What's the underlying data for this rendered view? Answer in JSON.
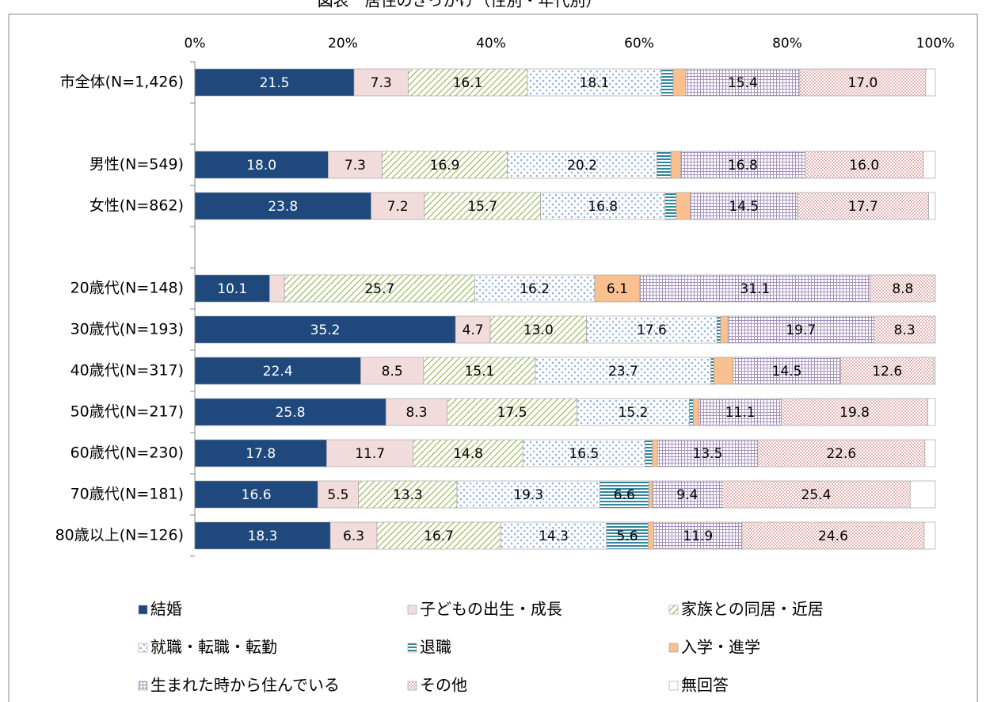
{
  "chart_data": {
    "type": "stacked-bar-horizontal",
    "title": "図表　居住のきっかけ（性別・年代別）",
    "categories": [
      "市全体(N=1,426)",
      null,
      "男性(N=549)",
      "女性(N=862)",
      null,
      "20歳代(N=148)",
      "30歳代(N=193)",
      "40歳代(N=317)",
      "50歳代(N=217)",
      "60歳代(N=230)",
      "70歳代(N=181)",
      "80歳以上(N=126)"
    ],
    "xlim": [
      0,
      100
    ],
    "xticks": [
      {
        "value": 0,
        "label": "0%"
      },
      {
        "value": 20,
        "label": "20%"
      },
      {
        "value": 40,
        "label": "40%"
      },
      {
        "value": 60,
        "label": "60%"
      },
      {
        "value": 80,
        "label": "80%"
      },
      {
        "value": 100,
        "label": "100%"
      }
    ],
    "series": [
      {
        "name": "結婚",
        "color": "#1f497d",
        "pattern": "solid",
        "values": [
          21.5,
          null,
          18,
          23.8,
          null,
          10.1,
          35.2,
          22.4,
          25.8,
          17.8,
          16.6,
          18.3
        ],
        "value_labels": [
          "21.5",
          null,
          "18.0",
          "23.8",
          null,
          "10.1",
          "35.2",
          "22.4",
          "25.8",
          "17.8",
          "16.6",
          "18.3"
        ]
      },
      {
        "name": "子どもの出生・成長",
        "color": "#f2dcdb",
        "pattern": "solid",
        "values": [
          7.3,
          null,
          7.3,
          7.2,
          null,
          2.0,
          4.7,
          8.5,
          8.3,
          11.7,
          5.5,
          6.3
        ]
      },
      {
        "name": "家族との同居・近居",
        "color": "#9bbb59",
        "pattern": "diagonal",
        "values": [
          16.1,
          null,
          16.9,
          15.7,
          null,
          25.7,
          13,
          15.1,
          17.5,
          14.8,
          13.3,
          16.7
        ],
        "value_labels": [
          "16.1",
          null,
          "16.9",
          "15.7",
          null,
          "25.7",
          "13.0",
          "15.1",
          "17.5",
          "14.8",
          "13.3",
          "16.7"
        ]
      },
      {
        "name": "就職・転職・転勤",
        "color": "#8eb4e3",
        "pattern": "dots",
        "values": [
          18.1,
          null,
          20.2,
          16.8,
          null,
          16.2,
          17.6,
          23.7,
          15.2,
          16.5,
          19.3,
          14.3
        ]
      },
      {
        "name": "退職",
        "color": "#31859c",
        "pattern": "hlines",
        "values": [
          1.6,
          null,
          1.9,
          1.5,
          null,
          0,
          0.5,
          0.4,
          0.5,
          1.0,
          6.6,
          5.6
        ]
      },
      {
        "name": "入学・進学",
        "color": "#fac090",
        "pattern": "solid",
        "values": [
          1.7,
          null,
          1.3,
          1.9,
          null,
          6.1,
          1.0,
          2.6,
          0.8,
          0.7,
          0.5,
          0.8
        ]
      },
      {
        "name": "生まれた時から住んでいる",
        "color": "#8064a2",
        "pattern": "grid",
        "values": [
          15.4,
          null,
          16.8,
          14.5,
          null,
          31.1,
          19.7,
          14.5,
          11.1,
          13.5,
          9.4,
          11.9
        ]
      },
      {
        "name": "その他",
        "color": "#d99694",
        "pattern": "check",
        "values": [
          17,
          null,
          16,
          17.7,
          null,
          8.8,
          8.3,
          12.6,
          19.8,
          22.6,
          25.4,
          24.6
        ],
        "value_labels": [
          "17.0",
          null,
          "16.0",
          "17.7",
          null,
          "8.8",
          "8.3",
          "12.6",
          "19.8",
          "22.6",
          "25.4",
          "24.6"
        ]
      },
      {
        "name": "無回答",
        "color": "#ffffff",
        "pattern": "solid",
        "values": [
          1.3,
          null,
          1.6,
          0.9,
          null,
          0,
          0,
          0.2,
          1.0,
          1.4,
          3.4,
          1.5
        ]
      }
    ]
  }
}
